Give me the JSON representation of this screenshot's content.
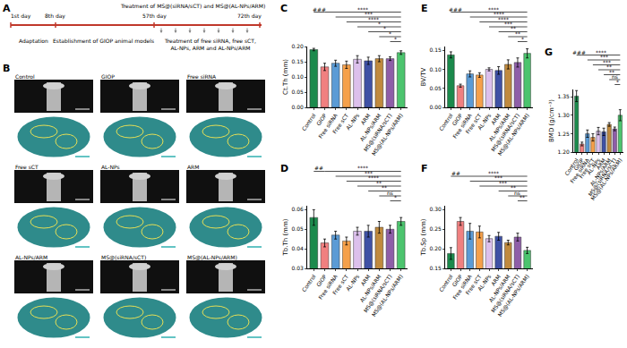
{
  "panel_a": {
    "label": "A",
    "day_labels": [
      "1st day",
      "8th day",
      "57th day",
      "72th day"
    ],
    "treatment_note": "Treatment of MS@(siRNA/sCT) and MS@(AL-NPs/ARM)",
    "phases": [
      [
        "Adaptation"
      ],
      [
        "Establishment of GIOP animal models"
      ],
      [
        "Treatment of free siRNA, free sCT,",
        "AL-NPs, ARM and AL-NPs/ARM"
      ]
    ]
  },
  "panel_b": {
    "label": "B",
    "images": [
      "Control",
      "GIOP",
      "Free siRNA",
      "Free sCT",
      "AL-NPs",
      "ARM",
      "AL-NPs/ARM",
      "MS@(siRNA/sCT)",
      "MS@(AL-NPs/ARM)"
    ]
  },
  "chart_data": [
    {
      "type": "bar",
      "panel": "C",
      "ylabel": "Ct.Th (mm)",
      "categories": [
        "Control",
        "GIOP",
        "Free siRNA",
        "Free sCT",
        "AL-NPs",
        "ARM",
        "AL-NPs/ARM",
        "MS@(siRNA/sCT)",
        "MS@(AL-NPs/ARM)"
      ],
      "colors": [
        "#1b8a4c",
        "#f08080",
        "#5b9bd5",
        "#f5a04a",
        "#dcc0ec",
        "#3f51a5",
        "#c08a3e",
        "#8e5ea8",
        "#4cc46e"
      ],
      "values": [
        0.19,
        0.133,
        0.145,
        0.14,
        0.158,
        0.153,
        0.16,
        0.16,
        0.18
      ],
      "errors": [
        0.004,
        0.012,
        0.01,
        0.012,
        0.012,
        0.012,
        0.01,
        0.006,
        0.006
      ],
      "ylim": [
        0,
        0.2
      ],
      "yticks": [
        {
          "value": 0,
          "label": "0.00"
        },
        0.05,
        {
          "value": 0.1,
          "label": "0.10"
        },
        0.15,
        {
          "value": 0.2,
          "label": "0.20"
        }
      ],
      "comparisons": [
        {
          "from": "Control",
          "to": "GIOP",
          "label": "###"
        },
        {
          "from": "GIOP",
          "to": "MS@(AL-NPs/ARM)",
          "label": "****"
        },
        {
          "from": "Free siRNA",
          "to": "MS@(AL-NPs/ARM)",
          "label": "***"
        },
        {
          "from": "Free sCT",
          "to": "MS@(AL-NPs/ARM)",
          "label": "****"
        },
        {
          "from": "AL-NPs",
          "to": "MS@(AL-NPs/ARM)",
          "label": "*"
        },
        {
          "from": "ARM",
          "to": "MS@(AL-NPs/ARM)",
          "label": "*"
        },
        {
          "from": "AL-NPs/ARM",
          "to": "MS@(AL-NPs/ARM)",
          "label": "*"
        },
        {
          "from": "MS@(siRNA/sCT)",
          "to": "MS@(AL-NPs/ARM)",
          "label": "*"
        }
      ]
    },
    {
      "type": "bar",
      "panel": "D",
      "ylabel": "Tb.Th (mm)",
      "categories": [
        "Control",
        "GIOP",
        "Free siRNA",
        "Free sCT",
        "AL-NPs",
        "ARM",
        "AL-NPs/ARM",
        "MS@(siRNA/sCT)",
        "MS@(AL-NPs/ARM)"
      ],
      "colors": [
        "#1b8a4c",
        "#f08080",
        "#5b9bd5",
        "#f5a04a",
        "#dcc0ec",
        "#3f51a5",
        "#c08a3e",
        "#8e5ea8",
        "#4cc46e"
      ],
      "values": [
        0.056,
        0.043,
        0.047,
        0.044,
        0.049,
        0.049,
        0.051,
        0.05,
        0.054
      ],
      "errors": [
        0.004,
        0.002,
        0.002,
        0.002,
        0.002,
        0.003,
        0.003,
        0.002,
        0.002
      ],
      "ylim": [
        0.03,
        0.062
      ],
      "yticks": [
        0.03,
        0.04,
        0.05,
        0.06
      ],
      "comparisons": [
        {
          "from": "Control",
          "to": "GIOP",
          "label": "##"
        },
        {
          "from": "GIOP",
          "to": "MS@(AL-NPs/ARM)",
          "label": "****"
        },
        {
          "from": "Free siRNA",
          "to": "MS@(AL-NPs/ARM)",
          "label": "***"
        },
        {
          "from": "Free sCT",
          "to": "MS@(AL-NPs/ARM)",
          "label": "****"
        },
        {
          "from": "AL-NPs",
          "to": "MS@(AL-NPs/ARM)",
          "label": "**"
        },
        {
          "from": "ARM",
          "to": "MS@(AL-NPs/ARM)",
          "label": "**"
        },
        {
          "from": "AL-NPs/ARM",
          "to": "MS@(AL-NPs/ARM)",
          "label": "ns"
        },
        {
          "from": "MS@(siRNA/sCT)",
          "to": "MS@(AL-NPs/ARM)",
          "label": "*"
        }
      ]
    },
    {
      "type": "bar",
      "panel": "E",
      "ylabel": "BV/TV",
      "categories": [
        "Control",
        "GIOP",
        "Free siRNA",
        "Free sCT",
        "AL-NPs",
        "ARM",
        "AL-NPs/ARM",
        "MS@(siRNA/sCT)",
        "MS@(AL-NPs/ARM)"
      ],
      "colors": [
        "#1b8a4c",
        "#f08080",
        "#5b9bd5",
        "#f5a04a",
        "#dcc0ec",
        "#3f51a5",
        "#c08a3e",
        "#8e5ea8",
        "#4cc46e"
      ],
      "values": [
        0.138,
        0.057,
        0.088,
        0.085,
        0.1,
        0.097,
        0.113,
        0.118,
        0.142
      ],
      "errors": [
        0.008,
        0.004,
        0.008,
        0.006,
        0.004,
        0.01,
        0.012,
        0.012,
        0.012
      ],
      "ylim": [
        0,
        0.16
      ],
      "yticks": [
        {
          "value": 0,
          "label": "0.00"
        },
        0.05,
        {
          "value": 0.1,
          "label": "0.10"
        },
        0.15
      ],
      "comparisons": [
        {
          "from": "Control",
          "to": "GIOP",
          "label": "###"
        },
        {
          "from": "GIOP",
          "to": "MS@(AL-NPs/ARM)",
          "label": "****"
        },
        {
          "from": "Free siRNA",
          "to": "MS@(AL-NPs/ARM)",
          "label": "****"
        },
        {
          "from": "Free sCT",
          "to": "MS@(AL-NPs/ARM)",
          "label": "****"
        },
        {
          "from": "AL-NPs",
          "to": "MS@(AL-NPs/ARM)",
          "label": "***"
        },
        {
          "from": "ARM",
          "to": "MS@(AL-NPs/ARM)",
          "label": "**"
        },
        {
          "from": "AL-NPs/ARM",
          "to": "MS@(AL-NPs/ARM)",
          "label": "**"
        },
        {
          "from": "MS@(siRNA/sCT)",
          "to": "MS@(AL-NPs/ARM)",
          "label": "*"
        }
      ]
    },
    {
      "type": "bar",
      "panel": "F",
      "ylabel": "Tb.Sp (mm)",
      "categories": [
        "Control",
        "GIOP",
        "Free siRNA",
        "Free sCT",
        "AL-NPs",
        "ARM",
        "AL-NPs/ARM",
        "MS@(siRNA/sCT)",
        "MS@(AL-NPs/ARM)"
      ],
      "colors": [
        "#1b8a4c",
        "#f08080",
        "#5b9bd5",
        "#f5a04a",
        "#dcc0ec",
        "#3f51a5",
        "#c08a3e",
        "#8e5ea8",
        "#4cc46e"
      ],
      "values": [
        0.188,
        0.27,
        0.245,
        0.243,
        0.226,
        0.232,
        0.216,
        0.23,
        0.196
      ],
      "errors": [
        0.015,
        0.01,
        0.02,
        0.015,
        0.008,
        0.01,
        0.006,
        0.01,
        0.008
      ],
      "ylim": [
        0.15,
        0.31
      ],
      "yticks": [
        0.15,
        {
          "value": 0.2,
          "label": "0.20"
        },
        0.25,
        {
          "value": 0.3,
          "label": "0.30"
        }
      ],
      "comparisons": [
        {
          "from": "Control",
          "to": "GIOP",
          "label": "##"
        },
        {
          "from": "GIOP",
          "to": "MS@(AL-NPs/ARM)",
          "label": "****"
        },
        {
          "from": "Free siRNA",
          "to": "MS@(AL-NPs/ARM)",
          "label": "***"
        },
        {
          "from": "Free sCT",
          "to": "MS@(AL-NPs/ARM)",
          "label": "***"
        },
        {
          "from": "ARM",
          "to": "MS@(AL-NPs/ARM)",
          "label": "**"
        },
        {
          "from": "AL-NPs/ARM",
          "to": "MS@(AL-NPs/ARM)",
          "label": "ns"
        },
        {
          "from": "MS@(siRNA/sCT)",
          "to": "MS@(AL-NPs/ARM)",
          "label": "**"
        }
      ]
    },
    {
      "type": "bar",
      "panel": "G",
      "ylabel": "BMD (g/cm⁻³)",
      "categories": [
        "Control",
        "GIOP",
        "Free siRNA",
        "Free sCT",
        "AL-NPs",
        "ARM",
        "AL-NPs/ARM",
        "MS@(siRNA/sCT)",
        "MS@(AL-NPs/ARM)"
      ],
      "colors": [
        "#1b8a4c",
        "#f08080",
        "#5b9bd5",
        "#f5a04a",
        "#dcc0ec",
        "#3f51a5",
        "#c08a3e",
        "#8e5ea8",
        "#4cc46e"
      ],
      "values": [
        1.352,
        1.222,
        1.25,
        1.24,
        1.257,
        1.255,
        1.275,
        1.263,
        1.3
      ],
      "errors": [
        0.015,
        0.005,
        0.01,
        0.01,
        0.01,
        0.01,
        0.005,
        0.005,
        0.015
      ],
      "ylim": [
        1.2,
        1.37
      ],
      "yticks": [
        {
          "value": 1.2,
          "label": "1.20"
        },
        1.25,
        {
          "value": 1.3,
          "label": "1.30"
        },
        1.35
      ],
      "comparisons": [
        {
          "from": "Control",
          "to": "GIOP",
          "label": "###"
        },
        {
          "from": "GIOP",
          "to": "MS@(AL-NPs/ARM)",
          "label": "****"
        },
        {
          "from": "Free siRNA",
          "to": "MS@(AL-NPs/ARM)",
          "label": "***"
        },
        {
          "from": "Free sCT",
          "to": "MS@(AL-NPs/ARM)",
          "label": "***"
        },
        {
          "from": "AL-NPs",
          "to": "MS@(AL-NPs/ARM)",
          "label": "**"
        },
        {
          "from": "ARM",
          "to": "MS@(AL-NPs/ARM)",
          "label": "**"
        },
        {
          "from": "AL-NPs/ARM",
          "to": "MS@(AL-NPs/ARM)",
          "label": "ns"
        },
        {
          "from": "MS@(siRNA/sCT)",
          "to": "MS@(AL-NPs/ARM)",
          "label": "*"
        }
      ]
    }
  ]
}
